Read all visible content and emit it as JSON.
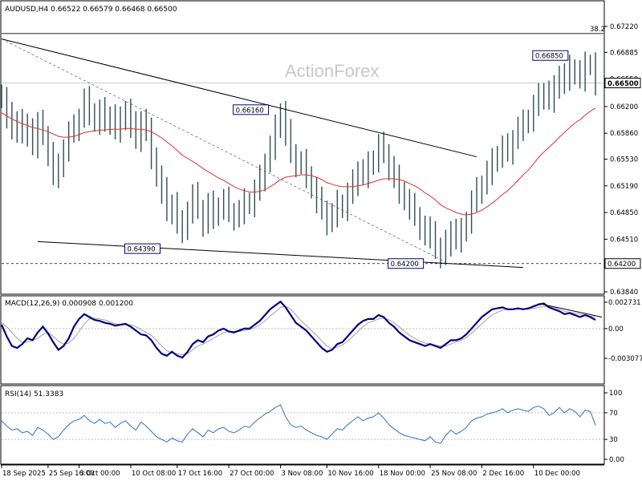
{
  "header": {
    "text": "AUDUSD,H4  0.66522 0.66579 0.66468 0.66500"
  },
  "watermark": "ActionForex",
  "colors": {
    "candle": "#2f4f4f",
    "ma": "#e03030",
    "macd": "#000080",
    "signal": "#a0a0a0",
    "rsi": "#3070c0",
    "trend": "#000000",
    "frame": "#000000"
  },
  "chart_data": [
    {
      "type": "candlestick",
      "symbol": "AUDUSD",
      "timeframe": "H4",
      "ylim": [
        0.6384,
        0.6722
      ],
      "yticks": [
        {
          "v": 0.6722,
          "label": "0.67220"
        },
        {
          "v": 0.6689,
          "label": "0.66885"
        },
        {
          "v": 0.6655,
          "label": "0.66550"
        },
        {
          "v": 0.662,
          "label": "0.66200"
        },
        {
          "v": 0.6586,
          "label": "0.65860"
        },
        {
          "v": 0.6553,
          "label": "0.65530"
        },
        {
          "v": 0.6519,
          "label": "0.65190"
        },
        {
          "v": 0.6485,
          "label": "0.64850"
        },
        {
          "v": 0.6451,
          "label": "0.64510"
        },
        {
          "v": 0.6384,
          "label": "0.63840"
        }
      ],
      "current_price": {
        "v": 0.665,
        "label": "0.66500"
      },
      "support_line": {
        "v": 0.642,
        "label": "0.64200"
      },
      "fib_level": {
        "v": 0.6713,
        "label": "38.2"
      },
      "annotations": [
        {
          "label": "0.66850",
          "v": 0.6685
        },
        {
          "label": "0.66160",
          "v": 0.6616
        },
        {
          "label": "0.64390",
          "v": 0.6439
        },
        {
          "label": "0.64200",
          "v": 0.642
        }
      ],
      "closes": [
        0.663,
        0.6608,
        0.659,
        0.6602,
        0.6585,
        0.6593,
        0.657,
        0.6598,
        0.6583,
        0.656,
        0.6532,
        0.6542,
        0.6566,
        0.6586,
        0.6592,
        0.6605,
        0.6628,
        0.6612,
        0.66,
        0.6614,
        0.66,
        0.6608,
        0.659,
        0.6602,
        0.6615,
        0.6596,
        0.6578,
        0.6602,
        0.6588,
        0.6556,
        0.653,
        0.6512,
        0.6486,
        0.6496,
        0.647,
        0.6462,
        0.6487,
        0.6506,
        0.6489,
        0.647,
        0.6495,
        0.648,
        0.6492,
        0.65,
        0.6485,
        0.6478,
        0.6486,
        0.6498,
        0.6495,
        0.6512,
        0.6528,
        0.6548,
        0.6568,
        0.6592,
        0.6612,
        0.6586,
        0.656,
        0.6546,
        0.6548,
        0.6532,
        0.6515,
        0.65,
        0.6488,
        0.6472,
        0.6482,
        0.6496,
        0.649,
        0.6508,
        0.6522,
        0.6538,
        0.6532,
        0.6545,
        0.6552,
        0.657,
        0.656,
        0.6542,
        0.6528,
        0.6512,
        0.65,
        0.6492,
        0.648,
        0.6466,
        0.6455,
        0.6462,
        0.6438,
        0.643,
        0.6445,
        0.6462,
        0.645,
        0.646,
        0.6474,
        0.6498,
        0.6512,
        0.652,
        0.6536,
        0.6549,
        0.6558,
        0.6568,
        0.6562,
        0.6578,
        0.6592,
        0.6598,
        0.6604,
        0.662,
        0.6632,
        0.6638,
        0.6628,
        0.6642,
        0.666,
        0.6652,
        0.6668,
        0.6664,
        0.6655,
        0.6672,
        0.6674,
        0.665
      ],
      "ma_series": [
        0.6612,
        0.6608,
        0.6604,
        0.6601,
        0.6598,
        0.6596,
        0.6593,
        0.6592,
        0.659,
        0.6588,
        0.6585,
        0.6582,
        0.6581,
        0.6581,
        0.6582,
        0.6584,
        0.6587,
        0.6588,
        0.6589,
        0.659,
        0.659,
        0.6591,
        0.6591,
        0.6591,
        0.6592,
        0.6592,
        0.6591,
        0.6591,
        0.659,
        0.6588,
        0.6584,
        0.658,
        0.6575,
        0.657,
        0.6564,
        0.6558,
        0.6554,
        0.655,
        0.6546,
        0.6541,
        0.6537,
        0.6533,
        0.6529,
        0.6526,
        0.6522,
        0.6518,
        0.6515,
        0.6513,
        0.6511,
        0.6511,
        0.6512,
        0.6514,
        0.6518,
        0.6522,
        0.6527,
        0.653,
        0.6531,
        0.6532,
        0.6533,
        0.6533,
        0.6532,
        0.653,
        0.6527,
        0.6523,
        0.6521,
        0.6519,
        0.6518,
        0.6518,
        0.6518,
        0.6519,
        0.652,
        0.6522,
        0.6524,
        0.6526,
        0.6528,
        0.6528,
        0.6528,
        0.6527,
        0.6525,
        0.6522,
        0.6519,
        0.6515,
        0.651,
        0.6506,
        0.6501,
        0.6495,
        0.6491,
        0.6488,
        0.6485,
        0.6483,
        0.6482,
        0.6483,
        0.6485,
        0.6488,
        0.6492,
        0.6497,
        0.6502,
        0.6508,
        0.6513,
        0.6519,
        0.6526,
        0.6533,
        0.6539,
        0.6547,
        0.6555,
        0.6562,
        0.6568,
        0.6574,
        0.6581,
        0.6587,
        0.6593,
        0.6599,
        0.6603,
        0.6609,
        0.6614,
        0.6618
      ]
    },
    {
      "type": "line",
      "title": "MACD(12,26,9) 0.000908 0.001200",
      "ylim": [
        -0.003077,
        0.002731
      ],
      "yticks": [
        {
          "v": 0.002731,
          "label": "0.002731"
        },
        {
          "v": 0.0,
          "label": "0.00"
        },
        {
          "v": -0.003077,
          "label": "-0.003077"
        }
      ],
      "macd": [
        0.0004,
        -0.0008,
        -0.0018,
        -0.002,
        -0.0016,
        -0.001,
        -0.0012,
        -0.0004,
        0.0002,
        -0.0005,
        -0.0014,
        -0.0022,
        -0.0018,
        -0.001,
        0.0002,
        0.001,
        0.0015,
        0.0012,
        0.0009,
        0.0008,
        0.0006,
        0.0005,
        0.0003,
        0.0004,
        0.0005,
        0.0002,
        -0.0002,
        -0.0006,
        -0.0007,
        -0.0012,
        -0.002,
        -0.0026,
        -0.0028,
        -0.0024,
        -0.0028,
        -0.003,
        -0.0024,
        -0.0016,
        -0.0012,
        -0.0014,
        -0.0008,
        -0.0006,
        -0.0002,
        0.0,
        -0.0003,
        -0.0004,
        -0.0002,
        0.0,
        0.0,
        0.0004,
        0.0008,
        0.0014,
        0.002,
        0.0024,
        0.0028,
        0.0022,
        0.0014,
        0.0006,
        0.0002,
        -0.0002,
        -0.0008,
        -0.0014,
        -0.002,
        -0.0024,
        -0.0022,
        -0.0016,
        -0.0014,
        -0.0008,
        -0.0002,
        0.0004,
        0.0008,
        0.001,
        0.001,
        0.0014,
        0.0012,
        0.0006,
        0.0002,
        -0.0004,
        -0.0008,
        -0.0012,
        -0.0014,
        -0.0016,
        -0.0018,
        -0.0016,
        -0.0018,
        -0.002,
        -0.0016,
        -0.0012,
        -0.0012,
        -0.001,
        -0.0006,
        0.0,
        0.0006,
        0.0012,
        0.0016,
        0.002,
        0.0021,
        0.0022,
        0.002,
        0.002,
        0.0021,
        0.002,
        0.0021,
        0.0023,
        0.0025,
        0.0026,
        0.0022,
        0.002,
        0.0018,
        0.0015,
        0.0016,
        0.0014,
        0.0012,
        0.0014,
        0.0012,
        0.0009
      ],
      "signal": [
        0.0006,
        0.0002,
        -0.0004,
        -0.001,
        -0.0014,
        -0.0014,
        -0.0012,
        -0.001,
        -0.0006,
        -0.0004,
        -0.0008,
        -0.0013,
        -0.0016,
        -0.0015,
        -0.001,
        -0.0003,
        0.0005,
        0.001,
        0.0011,
        0.001,
        0.0009,
        0.0007,
        0.0005,
        0.0004,
        0.0004,
        0.0004,
        0.0002,
        -0.0001,
        -0.0004,
        -0.0007,
        -0.0012,
        -0.0018,
        -0.0023,
        -0.0025,
        -0.0026,
        -0.0027,
        -0.0026,
        -0.0022,
        -0.0018,
        -0.0016,
        -0.0013,
        -0.001,
        -0.0007,
        -0.0004,
        -0.0003,
        -0.0003,
        -0.0003,
        -0.0002,
        -0.0001,
        0.0001,
        0.0004,
        0.0008,
        0.0013,
        0.0017,
        0.0022,
        0.0023,
        0.002,
        0.0014,
        0.0008,
        0.0003,
        -0.0002,
        -0.0007,
        -0.0013,
        -0.0018,
        -0.0021,
        -0.0019,
        -0.0017,
        -0.0013,
        -0.0008,
        -0.0003,
        0.0002,
        0.0006,
        0.0008,
        0.001,
        0.0011,
        0.0009,
        0.0006,
        0.0002,
        -0.0003,
        -0.0007,
        -0.001,
        -0.0013,
        -0.0015,
        -0.0016,
        -0.0017,
        -0.0018,
        -0.0018,
        -0.0016,
        -0.0014,
        -0.0012,
        -0.0009,
        -0.0005,
        0.0,
        0.0005,
        0.001,
        0.0014,
        0.0017,
        0.0019,
        0.002,
        0.002,
        0.002,
        0.002,
        0.002,
        0.0021,
        0.0022,
        0.0023,
        0.0023,
        0.0022,
        0.002,
        0.0018,
        0.0017,
        0.0016,
        0.0015,
        0.0014,
        0.0013,
        0.0012
      ]
    },
    {
      "type": "line",
      "title": "RSI(14) 51.3383",
      "ylim": [
        0,
        100
      ],
      "yticks": [
        {
          "v": 100,
          "label": "100"
        },
        {
          "v": 70,
          "label": "70"
        },
        {
          "v": 30,
          "label": "30"
        },
        {
          "v": 0,
          "label": "0.00"
        }
      ],
      "values": [
        58,
        50,
        44,
        46,
        40,
        42,
        36,
        48,
        44,
        38,
        30,
        34,
        44,
        52,
        58,
        60,
        66,
        58,
        54,
        60,
        54,
        56,
        48,
        54,
        58,
        50,
        44,
        56,
        50,
        42,
        34,
        30,
        26,
        32,
        28,
        26,
        38,
        46,
        40,
        34,
        44,
        40,
        46,
        48,
        42,
        40,
        44,
        50,
        48,
        56,
        62,
        68,
        72,
        78,
        82,
        64,
        52,
        48,
        50,
        44,
        40,
        36,
        34,
        30,
        38,
        46,
        44,
        52,
        58,
        64,
        58,
        62,
        64,
        70,
        62,
        52,
        46,
        40,
        36,
        34,
        32,
        30,
        28,
        34,
        26,
        24,
        36,
        44,
        38,
        42,
        48,
        58,
        62,
        64,
        68,
        70,
        72,
        76,
        70,
        74,
        76,
        74,
        72,
        78,
        80,
        76,
        66,
        70,
        78,
        70,
        76,
        72,
        64,
        74,
        72,
        51.3
      ]
    },
    {
      "type": "axis",
      "xticks": [
        {
          "i": 0,
          "label": "18 Sep 2025"
        },
        {
          "i": 9,
          "label": "25 Sep 16:00"
        },
        {
          "i": 15,
          "label": "3 Oct 00:00"
        },
        {
          "i": 25,
          "label": "10 Oct 08:00"
        },
        {
          "i": 34,
          "label": "17 Oct 16:00"
        },
        {
          "i": 44,
          "label": "27 Oct 00:00"
        },
        {
          "i": 54,
          "label": "3 Nov 08:00"
        },
        {
          "i": 63,
          "label": "10 Nov 16:00"
        },
        {
          "i": 73,
          "label": "18 Nov 00:00"
        },
        {
          "i": 83,
          "label": "25 Nov 08:00"
        },
        {
          "i": 93,
          "label": "2 Dec 16:00"
        },
        {
          "i": 103,
          "label": "10 Dec 00:00"
        }
      ]
    }
  ]
}
